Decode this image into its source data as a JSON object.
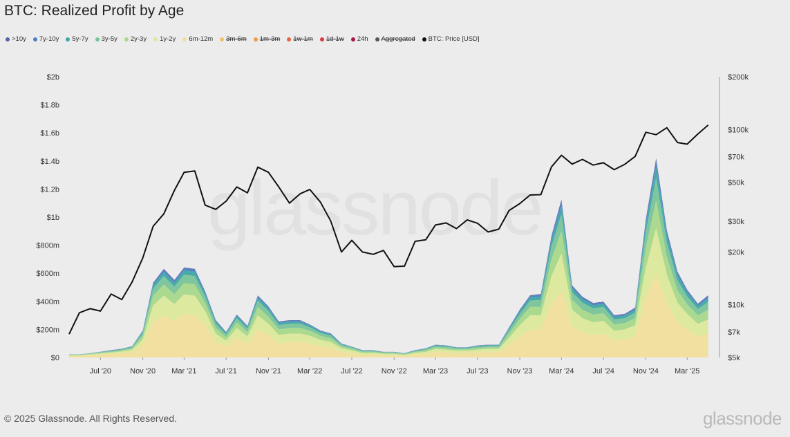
{
  "title": "BTC: Realized Profit by Age",
  "watermark": "glassnode",
  "footer": "© 2025 Glassnode. All Rights Reserved.",
  "brand": "glassnode",
  "legend": [
    {
      "label": ">10y",
      "color": "#5a5fa8",
      "enabled": true
    },
    {
      "label": "7y-10y",
      "color": "#4a7ec2",
      "enabled": true
    },
    {
      "label": "5y-7y",
      "color": "#3fa6a4",
      "enabled": true
    },
    {
      "label": "3y-5y",
      "color": "#79c49a",
      "enabled": true
    },
    {
      "label": "2y-3y",
      "color": "#a8d88a",
      "enabled": true
    },
    {
      "label": "1y-2y",
      "color": "#dde99c",
      "enabled": true
    },
    {
      "label": "6m-12m",
      "color": "#f2df9c",
      "enabled": true
    },
    {
      "label": "3m-6m",
      "color": "#f2c069",
      "enabled": false
    },
    {
      "label": "1m-3m",
      "color": "#ef9a45",
      "enabled": false
    },
    {
      "label": "1w-1m",
      "color": "#e3643c",
      "enabled": false
    },
    {
      "label": "1d-1w",
      "color": "#d63c48",
      "enabled": false
    },
    {
      "label": "24h",
      "color": "#a8164a",
      "enabled": true
    },
    {
      "label": "Aggregated",
      "color": "#555555",
      "enabled": false
    },
    {
      "label": "BTC: Price [USD]",
      "color": "#111111",
      "enabled": true
    }
  ],
  "chart_data": {
    "type": "area",
    "title": "BTC: Realized Profit by Age",
    "x_ticks": [
      "Jul '20",
      "Nov '20",
      "Mar '21",
      "Jul '21",
      "Nov '21",
      "Mar '22",
      "Jul '22",
      "Nov '22",
      "Mar '23",
      "Jul '23",
      "Nov '23",
      "Mar '24",
      "Jul '24",
      "Nov '24",
      "Mar '25"
    ],
    "y_left_ticks": [
      "$0",
      "$200m",
      "$400m",
      "$600m",
      "$800m",
      "$1b",
      "$1.2b",
      "$1.4b",
      "$1.6b",
      "$1.8b",
      "$2b"
    ],
    "y_left_range": [
      0,
      2000
    ],
    "y_left_unit": "USD millions",
    "y_right_ticks": [
      "$5k",
      "$7k",
      "$10k",
      "$20k",
      "$30k",
      "$50k",
      "$70k",
      "$100k",
      "$200k"
    ],
    "y_right_tick_values": [
      5000,
      7000,
      10000,
      20000,
      30000,
      50000,
      70000,
      100000,
      200000
    ],
    "y_right_range": [
      5000,
      200000
    ],
    "y_right_scale": "log",
    "x_range": [
      "2020-04-01",
      "2025-06-01"
    ],
    "dates": [
      "2020-04-01",
      "2020-05-01",
      "2020-06-01",
      "2020-07-01",
      "2020-08-01",
      "2020-09-01",
      "2020-10-01",
      "2020-11-01",
      "2020-12-01",
      "2021-01-01",
      "2021-02-01",
      "2021-03-01",
      "2021-04-01",
      "2021-05-01",
      "2021-06-01",
      "2021-07-01",
      "2021-08-01",
      "2021-09-01",
      "2021-10-01",
      "2021-11-01",
      "2021-12-01",
      "2022-01-01",
      "2022-02-01",
      "2022-03-01",
      "2022-04-01",
      "2022-05-01",
      "2022-06-01",
      "2022-07-01",
      "2022-08-01",
      "2022-09-01",
      "2022-10-01",
      "2022-11-01",
      "2022-12-01",
      "2023-01-01",
      "2023-02-01",
      "2023-03-01",
      "2023-04-01",
      "2023-05-01",
      "2023-06-01",
      "2023-07-01",
      "2023-08-01",
      "2023-09-01",
      "2023-10-01",
      "2023-11-01",
      "2023-12-01",
      "2024-01-01",
      "2024-02-01",
      "2024-03-01",
      "2024-04-01",
      "2024-05-01",
      "2024-06-01",
      "2024-07-01",
      "2024-08-01",
      "2024-09-01",
      "2024-10-01",
      "2024-11-01",
      "2024-12-01",
      "2025-01-01",
      "2025-02-01",
      "2025-03-01",
      "2025-04-01",
      "2025-05-01"
    ],
    "btc_price": [
      6800,
      9000,
      9500,
      9200,
      11500,
      10700,
      13500,
      18500,
      28000,
      33000,
      45000,
      57000,
      58000,
      37000,
      35000,
      39000,
      47000,
      43500,
      61000,
      57000,
      47000,
      38000,
      43000,
      45500,
      38500,
      30000,
      20000,
      23300,
      20000,
      19400,
      20400,
      16500,
      16600,
      23000,
      23500,
      28500,
      29300,
      27200,
      30500,
      29200,
      26000,
      27000,
      34500,
      37800,
      42300,
      42500,
      61200,
      71300,
      63500,
      67500,
      62700,
      64600,
      59000,
      63300,
      70200,
      96400,
      93400,
      102400,
      84300,
      82500,
      94200,
      106000
    ],
    "series": [
      {
        "name": "6m-12m",
        "color": "#f2df9c",
        "values": [
          10,
          10,
          15,
          20,
          25,
          30,
          40,
          90,
          250,
          300,
          260,
          310,
          300,
          230,
          110,
          80,
          140,
          100,
          200,
          160,
          100,
          110,
          110,
          100,
          80,
          70,
          40,
          30,
          20,
          20,
          15,
          15,
          10,
          20,
          25,
          40,
          35,
          30,
          30,
          35,
          40,
          40,
          90,
          150,
          200,
          200,
          380,
          480,
          220,
          180,
          160,
          170,
          120,
          130,
          150,
          420,
          600,
          380,
          250,
          200,
          150,
          170
        ]
      },
      {
        "name": "1y-2y",
        "color": "#dde99c",
        "values": [
          5,
          5,
          6,
          8,
          10,
          12,
          15,
          40,
          120,
          140,
          120,
          140,
          140,
          100,
          60,
          40,
          70,
          50,
          100,
          80,
          60,
          60,
          60,
          55,
          45,
          40,
          25,
          20,
          12,
          12,
          10,
          10,
          8,
          12,
          15,
          20,
          20,
          18,
          18,
          20,
          20,
          20,
          50,
          80,
          100,
          100,
          200,
          260,
          120,
          100,
          90,
          90,
          70,
          70,
          80,
          220,
          320,
          210,
          140,
          110,
          90,
          100
        ]
      },
      {
        "name": "2y-3y",
        "color": "#a8d88a",
        "values": [
          3,
          3,
          4,
          5,
          6,
          8,
          10,
          25,
          70,
          80,
          70,
          80,
          80,
          60,
          40,
          25,
          40,
          30,
          60,
          50,
          40,
          40,
          40,
          35,
          30,
          25,
          15,
          12,
          8,
          8,
          6,
          6,
          5,
          8,
          10,
          12,
          12,
          10,
          10,
          12,
          12,
          12,
          30,
          45,
          60,
          60,
          120,
          160,
          70,
          60,
          55,
          55,
          45,
          45,
          50,
          140,
          200,
          130,
          90,
          70,
          60,
          70
        ]
      },
      {
        "name": "3y-5y",
        "color": "#79c49a",
        "values": [
          2,
          2,
          3,
          4,
          5,
          6,
          8,
          20,
          50,
          60,
          55,
          60,
          60,
          45,
          30,
          20,
          30,
          25,
          45,
          40,
          30,
          30,
          30,
          25,
          20,
          20,
          10,
          8,
          6,
          6,
          5,
          5,
          4,
          6,
          8,
          10,
          10,
          8,
          8,
          10,
          10,
          10,
          25,
          35,
          45,
          50,
          90,
          120,
          55,
          50,
          45,
          45,
          35,
          35,
          40,
          110,
          160,
          100,
          70,
          55,
          45,
          55
        ]
      },
      {
        "name": "5y-7y",
        "color": "#3fa6a4",
        "values": [
          1,
          1,
          2,
          2,
          3,
          3,
          4,
          10,
          25,
          30,
          28,
          30,
          30,
          22,
          15,
          10,
          15,
          12,
          22,
          20,
          15,
          15,
          15,
          12,
          10,
          10,
          5,
          4,
          3,
          3,
          2,
          2,
          2,
          3,
          4,
          5,
          5,
          4,
          4,
          5,
          5,
          5,
          12,
          18,
          22,
          25,
          45,
          60,
          28,
          25,
          22,
          22,
          18,
          18,
          20,
          55,
          80,
          50,
          35,
          28,
          22,
          28
        ]
      },
      {
        "name": "7y-10y",
        "color": "#4a7ec2",
        "values": [
          1,
          1,
          1,
          1,
          2,
          2,
          2,
          5,
          12,
          15,
          14,
          15,
          15,
          11,
          8,
          5,
          8,
          6,
          11,
          10,
          8,
          8,
          8,
          6,
          5,
          5,
          3,
          2,
          2,
          2,
          1,
          1,
          1,
          2,
          2,
          3,
          3,
          2,
          2,
          3,
          3,
          3,
          6,
          9,
          11,
          12,
          22,
          30,
          14,
          12,
          11,
          11,
          9,
          9,
          10,
          28,
          40,
          25,
          18,
          14,
          11,
          14
        ]
      },
      {
        "name": ">10y",
        "color": "#5a5fa8",
        "values": [
          0,
          0,
          0,
          1,
          1,
          1,
          1,
          2,
          5,
          6,
          5,
          6,
          6,
          4,
          3,
          2,
          3,
          2,
          4,
          4,
          3,
          3,
          3,
          2,
          2,
          2,
          1,
          1,
          1,
          1,
          1,
          1,
          1,
          1,
          1,
          1,
          1,
          1,
          1,
          1,
          1,
          1,
          2,
          4,
          5,
          5,
          10,
          14,
          6,
          5,
          5,
          5,
          4,
          4,
          5,
          12,
          18,
          11,
          8,
          6,
          5,
          6
        ]
      }
    ]
  }
}
